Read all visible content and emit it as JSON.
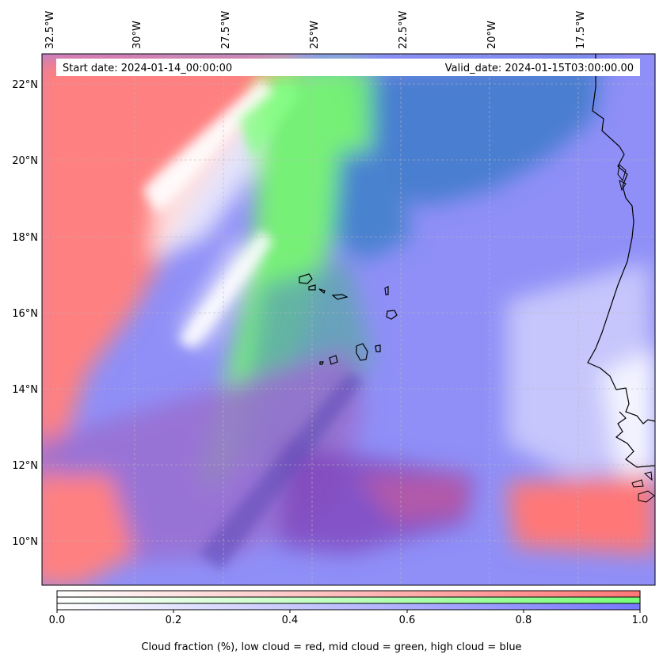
{
  "map": {
    "start_date": "Start date: 2024-01-14_00:00:00",
    "valid_date": "Valid_date: 2024-01-15T03:00:00.00",
    "lon_labels": [
      "32.5°W",
      "30°W",
      "27.5°W",
      "25°W",
      "22.5°W",
      "20°W",
      "17.5°W"
    ],
    "lat_labels": [
      "22°N",
      "20°N",
      "18°N",
      "16°N",
      "14°N",
      "12°N",
      "10°N"
    ],
    "colors": {
      "low_cloud": "#ff7777",
      "mid_cloud": "#77ff77",
      "high_cloud": "#7777ff",
      "background": "#ffffff"
    },
    "features": [
      "coastline-africa",
      "cape-verde-islands",
      "gridlines"
    ]
  },
  "colorbar": {
    "ticks": [
      "0.0",
      "0.2",
      "0.4",
      "0.6",
      "0.8",
      "1.0"
    ],
    "caption": "Cloud fraction (%), low cloud = red, mid cloud = green, high cloud = blue"
  }
}
